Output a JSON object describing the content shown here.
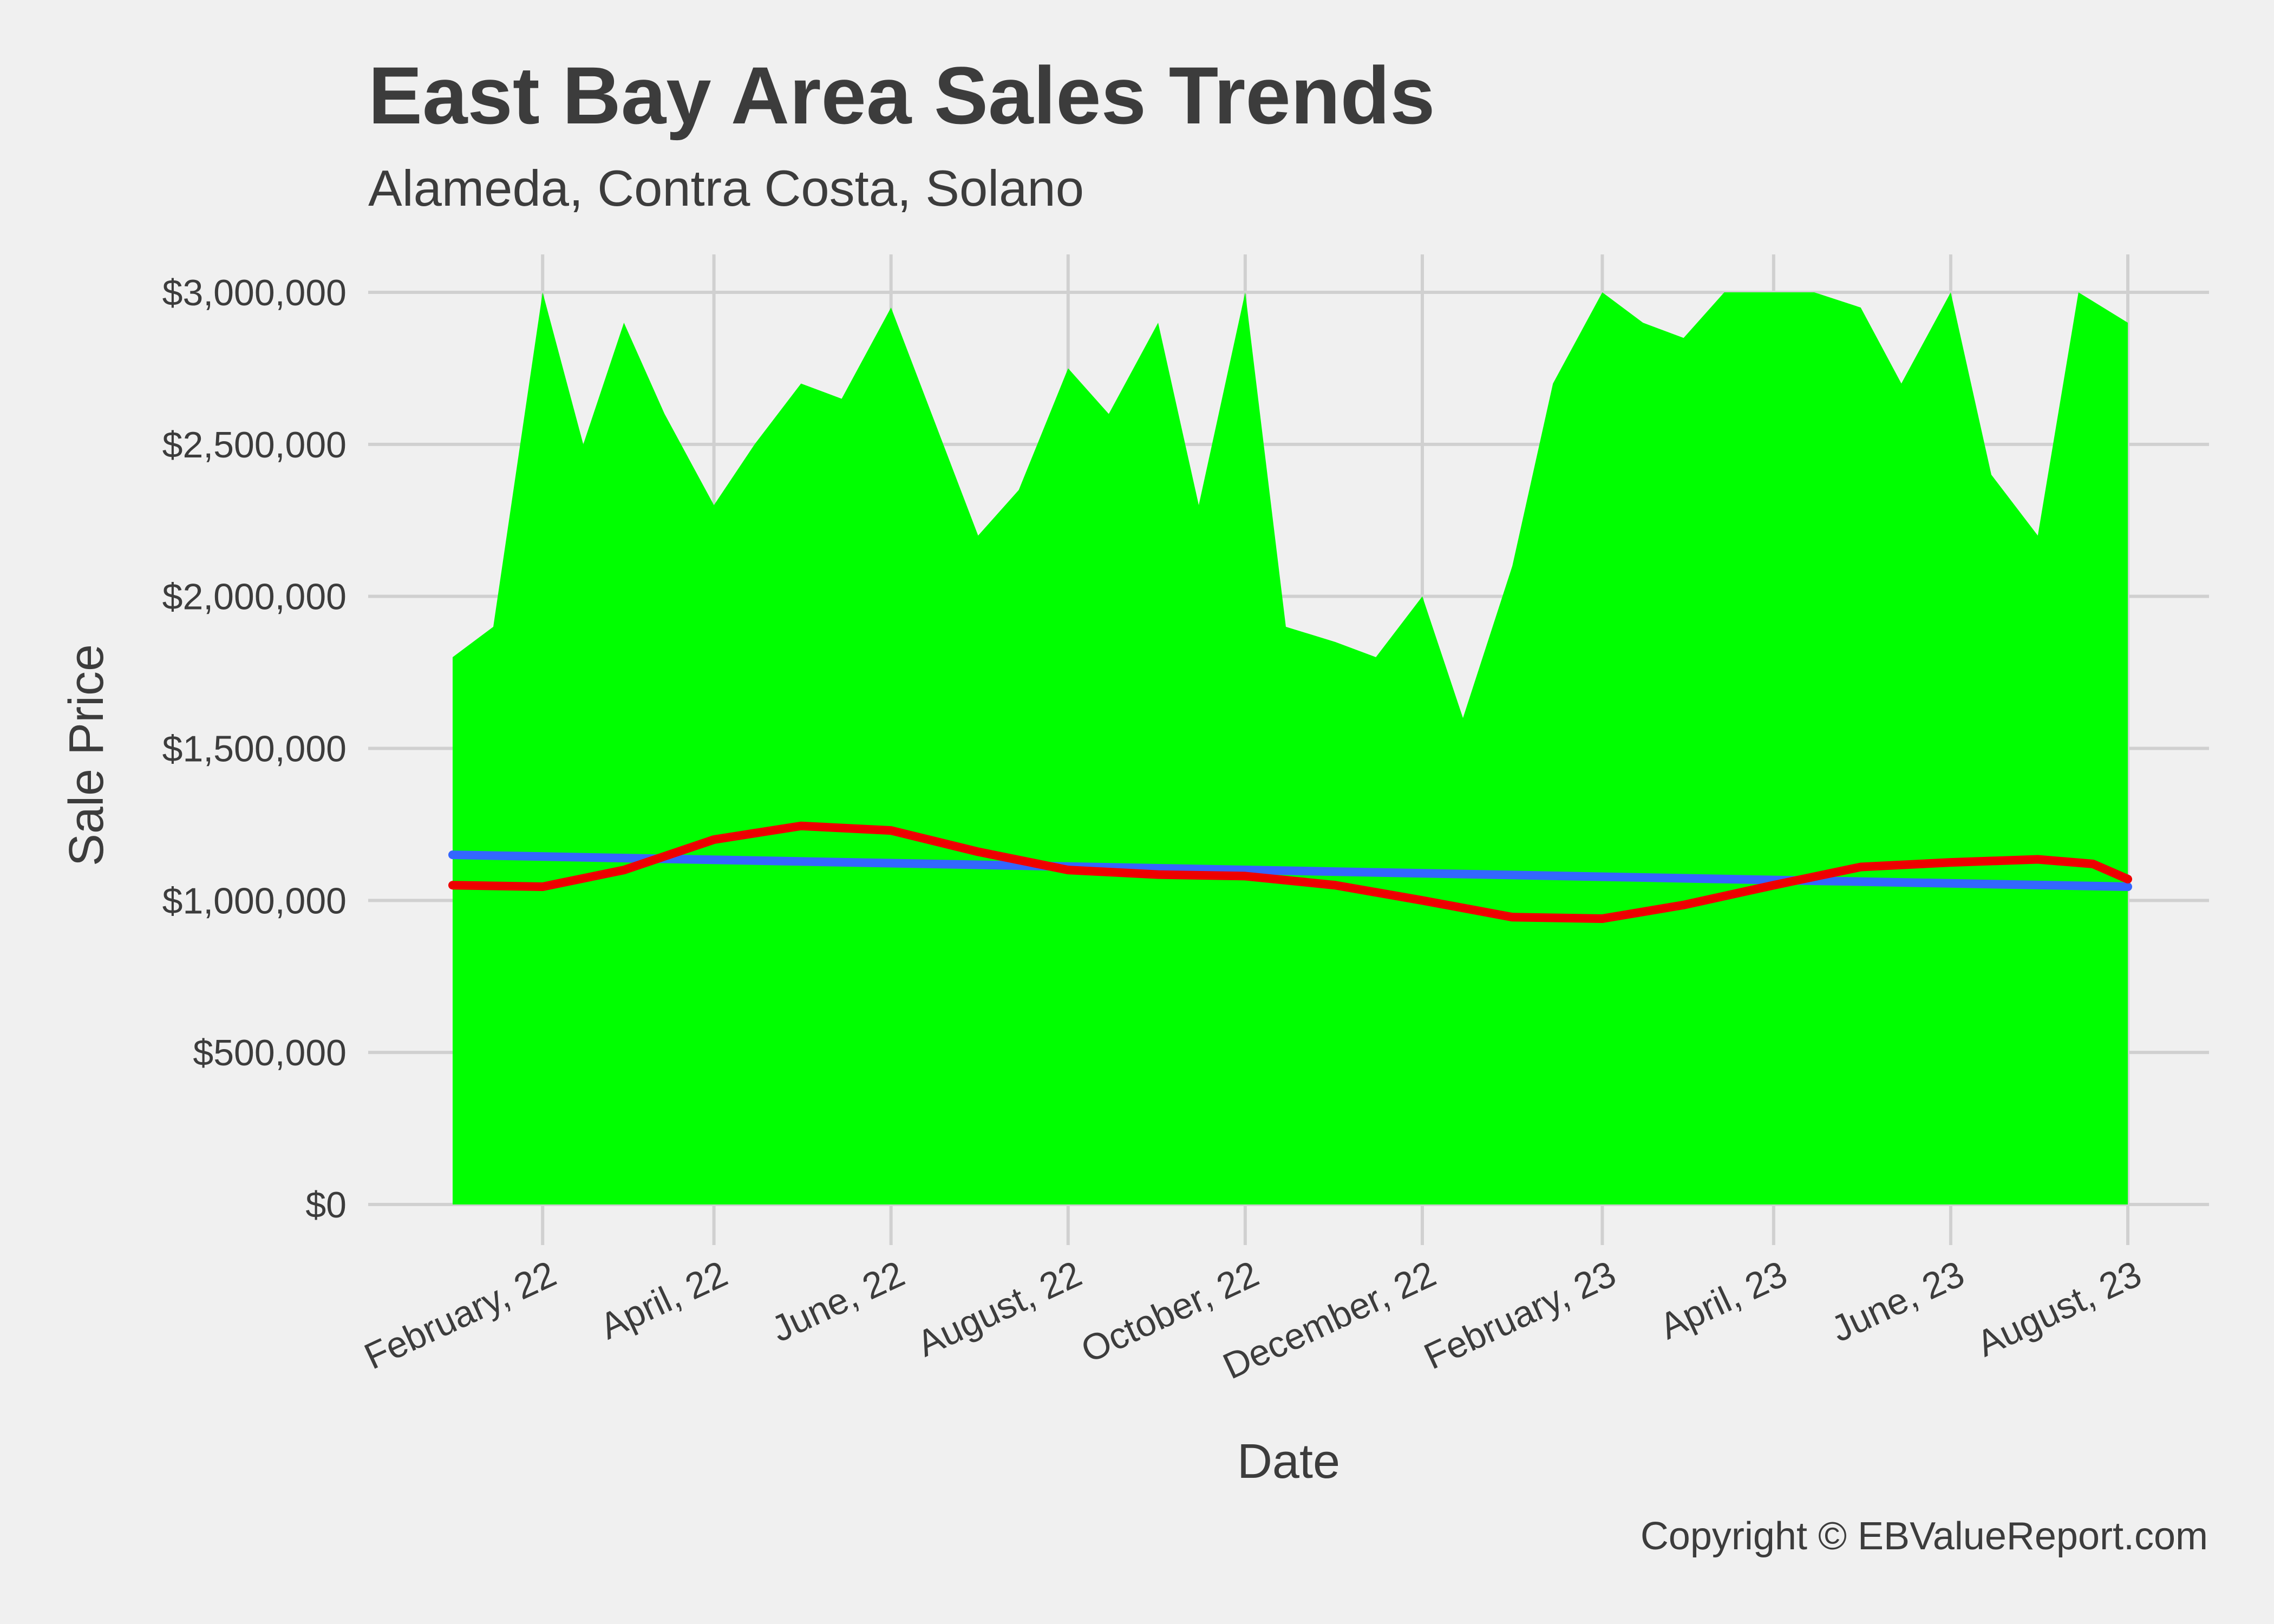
{
  "chart_data": {
    "type": "area",
    "title": "East Bay Area Sales Trends",
    "subtitle": "Alameda, Contra Costa, Solano",
    "xlabel": "Date",
    "ylabel": "Sale Price",
    "caption": "Copyright  © EBValueReport.com",
    "x_range": [
      "2022-01-01",
      "2023-08-01"
    ],
    "ylim": [
      0,
      3000000
    ],
    "y_ticks": [
      0,
      500000,
      1000000,
      1500000,
      2000000,
      2500000,
      3000000
    ],
    "y_tick_labels": [
      "$0",
      "$500,000",
      "$1,000,000",
      "$1,500,000",
      "$2,000,000",
      "$2,500,000",
      "$3,000,000"
    ],
    "x_ticks": [
      "2022-02-01",
      "2022-04-01",
      "2022-06-01",
      "2022-08-01",
      "2022-10-01",
      "2022-12-01",
      "2023-02-01",
      "2023-04-01",
      "2023-06-01",
      "2023-08-01"
    ],
    "x_tick_labels": [
      "February, 22",
      "April, 22",
      "June, 22",
      "August, 22",
      "October, 22",
      "December, 22",
      "February, 23",
      "April, 23",
      "June, 23",
      "August, 23"
    ],
    "grid": true,
    "legend": "none",
    "colors": {
      "area": "#00ff00",
      "linear_trend": "#3366ff",
      "smooth_trend": "#ee0000",
      "background": "#f0f0f0",
      "grid": "#d0d0d0"
    },
    "series": [
      {
        "type": "area",
        "x": [
          "2022-01-01",
          "2022-01-15",
          "2022-02-01",
          "2022-02-15",
          "2022-03-01",
          "2022-03-15",
          "2022-04-01",
          "2022-04-15",
          "2022-05-01",
          "2022-05-15",
          "2022-06-01",
          "2022-06-15",
          "2022-07-01",
          "2022-07-15",
          "2022-08-01",
          "2022-08-15",
          "2022-09-01",
          "2022-09-15",
          "2022-10-01",
          "2022-10-15",
          "2022-11-01",
          "2022-11-15",
          "2022-12-01",
          "2022-12-15",
          "2023-01-01",
          "2023-01-15",
          "2023-02-01",
          "2023-02-15",
          "2023-03-01",
          "2023-03-15",
          "2023-04-01",
          "2023-04-15",
          "2023-05-01",
          "2023-05-15",
          "2023-06-01",
          "2023-06-15",
          "2023-07-01",
          "2023-07-15",
          "2023-08-01"
        ],
        "y": [
          1800000,
          1900000,
          3000000,
          2500000,
          2900000,
          2600000,
          2300000,
          2500000,
          2700000,
          2650000,
          2950000,
          2600000,
          2200000,
          2350000,
          2750000,
          2600000,
          2900000,
          2300000,
          3000000,
          1900000,
          1850000,
          1800000,
          2000000,
          1600000,
          2100000,
          2700000,
          3000000,
          2900000,
          2850000,
          3000000,
          3000000,
          3000000,
          2950000,
          2700000,
          3000000,
          2400000,
          2200000,
          3000000,
          2900000
        ]
      },
      {
        "type": "line",
        "x": [
          "2022-01-01",
          "2023-08-01"
        ],
        "y": [
          1150000,
          1045000
        ]
      },
      {
        "type": "line",
        "x": [
          "2022-01-01",
          "2022-02-01",
          "2022-03-01",
          "2022-04-01",
          "2022-05-01",
          "2022-06-01",
          "2022-07-01",
          "2022-08-01",
          "2022-09-01",
          "2022-10-01",
          "2022-11-01",
          "2022-12-01",
          "2023-01-01",
          "2023-02-01",
          "2023-03-01",
          "2023-04-01",
          "2023-05-01",
          "2023-06-01",
          "2023-07-01",
          "2023-07-20",
          "2023-08-01"
        ],
        "y": [
          1050000,
          1045000,
          1100000,
          1200000,
          1245000,
          1230000,
          1160000,
          1100000,
          1085000,
          1080000,
          1050000,
          1000000,
          945000,
          940000,
          985000,
          1050000,
          1110000,
          1125000,
          1135000,
          1120000,
          1070000
        ]
      }
    ]
  }
}
